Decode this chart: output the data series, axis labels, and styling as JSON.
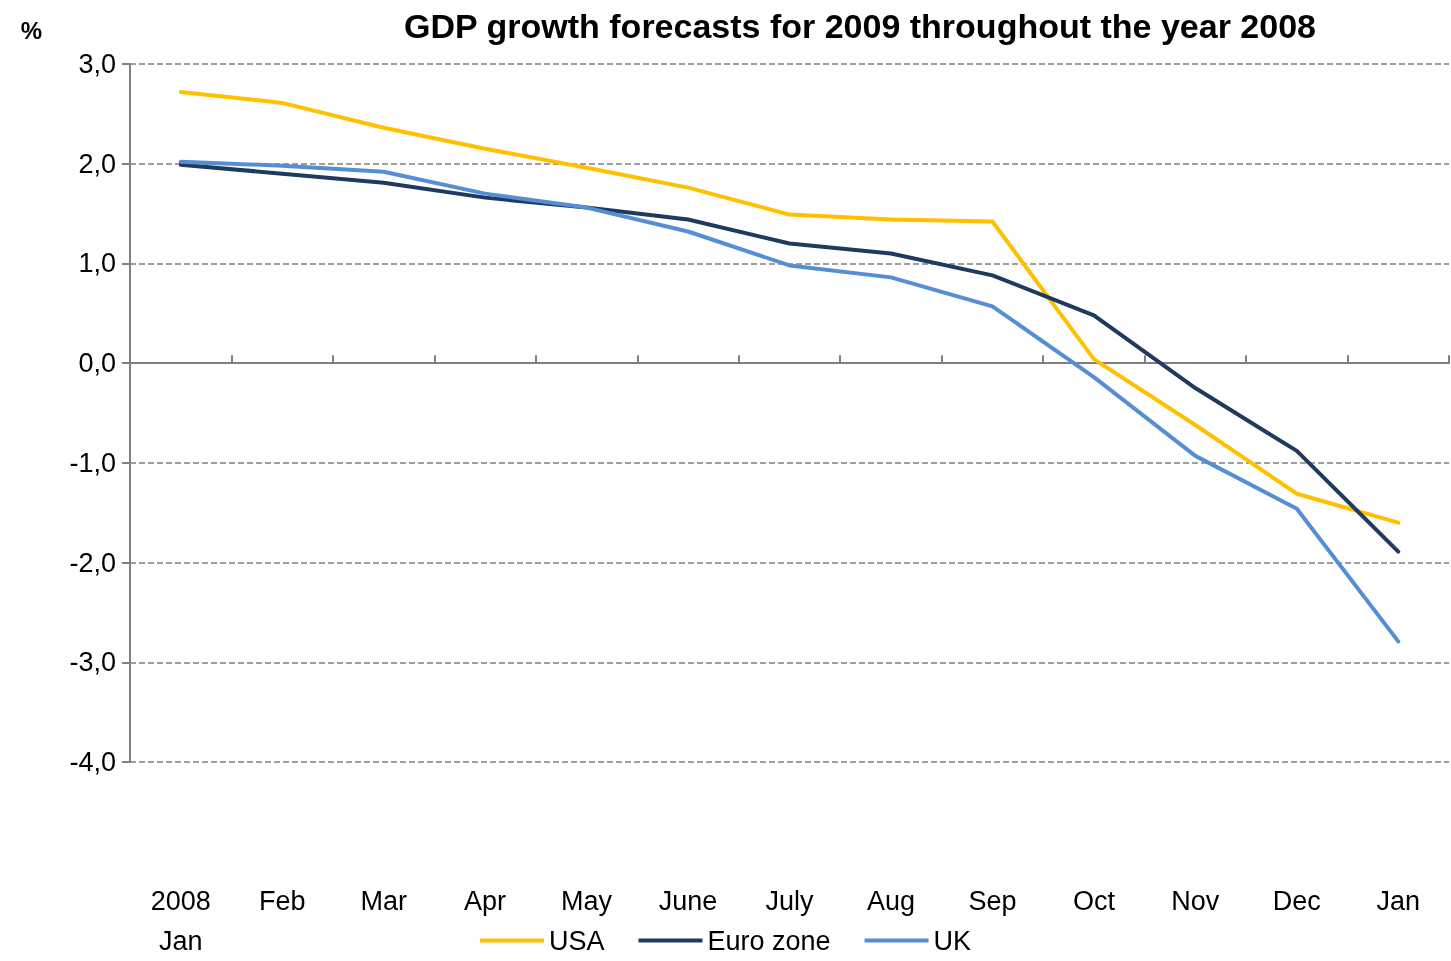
{
  "chart_data": {
    "type": "line",
    "title": "GDP growth forecasts for 2009 throughout the year 2008",
    "ylabel": "%",
    "categories": [
      "2008\nJan",
      "Feb",
      "Mar",
      "Apr",
      "May",
      "June",
      "July",
      "Aug",
      "Sep",
      "Oct",
      "Nov",
      "Dec",
      "Jan"
    ],
    "series": [
      {
        "name": "USA",
        "color": "#ffc000",
        "values": [
          2.72,
          2.61,
          2.36,
          2.15,
          1.96,
          1.76,
          1.49,
          1.44,
          1.42,
          0.04,
          -0.62,
          -1.31,
          -1.6
        ]
      },
      {
        "name": "Euro zone",
        "color": "#1f3a5f",
        "values": [
          1.99,
          1.9,
          1.81,
          1.66,
          1.56,
          1.44,
          1.2,
          1.1,
          0.88,
          0.48,
          -0.25,
          -0.88,
          -1.89
        ]
      },
      {
        "name": "UK",
        "color": "#558ed5",
        "values": [
          2.02,
          1.98,
          1.92,
          1.7,
          1.56,
          1.32,
          0.98,
          0.86,
          0.57,
          -0.14,
          -0.93,
          -1.46,
          -2.79
        ]
      }
    ],
    "ylim": [
      -4,
      3
    ],
    "yticks": [
      {
        "value": -4,
        "label": "-4,0"
      },
      {
        "value": -3,
        "label": "-3,0"
      },
      {
        "value": -2,
        "label": "-2,0"
      },
      {
        "value": -1,
        "label": "-1,0"
      },
      {
        "value": 0,
        "label": "0,0"
      },
      {
        "value": 1,
        "label": "1,0"
      },
      {
        "value": 2,
        "label": "2,0"
      },
      {
        "value": 3,
        "label": "3,0"
      }
    ],
    "grid": "y",
    "legend": "bottom",
    "marker": "none",
    "line_style": "solid"
  }
}
